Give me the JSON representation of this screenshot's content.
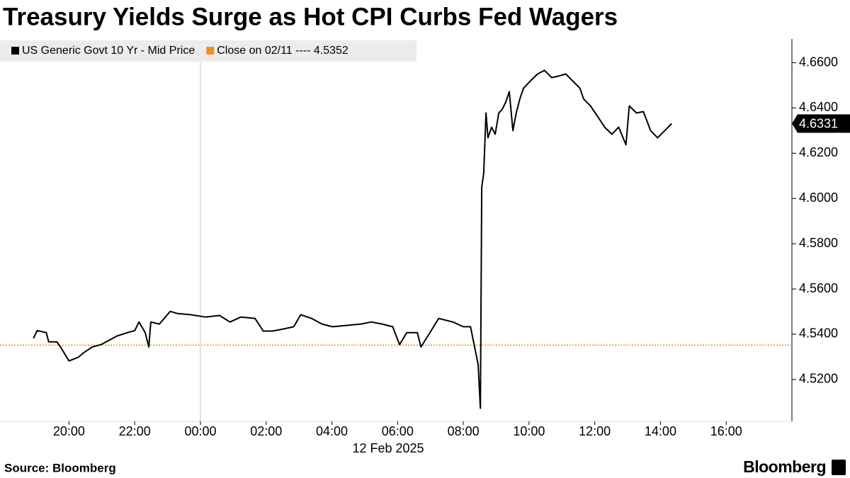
{
  "chart_data": {
    "type": "line",
    "title": "Treasury Yields Surge as Hot CPI Curbs Fed Wagers",
    "xlabel": "12 Feb 2025",
    "source": "Source: Bloomberg",
    "brand": "Bloomberg",
    "xlim": [
      -6.1,
      18
    ],
    "xticks": [
      {
        "value": -4,
        "label": "20:00"
      },
      {
        "value": -2,
        "label": "22:00"
      },
      {
        "value": 0,
        "label": "00:00"
      },
      {
        "value": 2,
        "label": "02:00"
      },
      {
        "value": 4,
        "label": "04:00"
      },
      {
        "value": 6,
        "label": "06:00"
      },
      {
        "value": 8,
        "label": "08:00"
      },
      {
        "value": 10,
        "label": "10:00"
      },
      {
        "value": 12,
        "label": "12:00"
      },
      {
        "value": 14,
        "label": "14:00"
      },
      {
        "value": 16,
        "label": "16:00"
      }
    ],
    "ylim": [
      4.5015,
      4.6705
    ],
    "yticks": [
      {
        "value": 4.52,
        "label": "4.5200"
      },
      {
        "value": 4.54,
        "label": "4.5400"
      },
      {
        "value": 4.56,
        "label": "4.5600"
      },
      {
        "value": 4.58,
        "label": "4.5800"
      },
      {
        "value": 4.6,
        "label": "4.6000"
      },
      {
        "value": 4.62,
        "label": "4.6200"
      },
      {
        "value": 4.64,
        "label": "4.6400"
      },
      {
        "value": 4.66,
        "label": "4.6600"
      }
    ],
    "x": [
      -5.08,
      -4.97,
      -4.69,
      -4.62,
      -4.37,
      -4.26,
      -4.0,
      -3.72,
      -3.55,
      -3.29,
      -3.03,
      -2.75,
      -2.54,
      -2.22,
      -2.0,
      -1.87,
      -1.68,
      -1.57,
      -1.51,
      -1.25,
      -0.92,
      -0.71,
      -0.28,
      0.15,
      0.58,
      0.9,
      1.23,
      1.66,
      1.91,
      2.19,
      2.52,
      2.84,
      3.05,
      3.38,
      3.7,
      4.02,
      4.45,
      4.88,
      5.2,
      5.53,
      5.85,
      6.06,
      6.28,
      6.6,
      6.71,
      6.92,
      7.25,
      7.68,
      8.0,
      8.22,
      8.32,
      8.45,
      8.52,
      8.56,
      8.62,
      8.69,
      8.75,
      8.86,
      8.97,
      9.08,
      9.18,
      9.29,
      9.4,
      9.51,
      9.61,
      9.72,
      9.83,
      10.04,
      10.26,
      10.47,
      10.69,
      10.9,
      11.12,
      11.33,
      11.55,
      11.66,
      11.87,
      12.09,
      12.3,
      12.52,
      12.73,
      12.95,
      13.05,
      13.27,
      13.48,
      13.7,
      13.91,
      14.13,
      14.34
    ],
    "series": [
      {
        "name": "US Generic Govt 10 Yr - Mid Price",
        "color": "#000000",
        "values": [
          4.5382,
          4.5416,
          4.5407,
          4.5366,
          4.5366,
          4.5344,
          4.5282,
          4.5298,
          4.5319,
          4.5344,
          4.5354,
          4.5376,
          4.5392,
          4.5407,
          4.5416,
          4.5454,
          4.5407,
          4.5344,
          4.5454,
          4.5445,
          4.5501,
          4.5492,
          4.5486,
          4.5476,
          4.5483,
          4.5454,
          4.5476,
          4.547,
          4.5414,
          4.5414,
          4.5423,
          4.5433,
          4.5486,
          4.547,
          4.5445,
          4.5433,
          4.5439,
          4.5445,
          4.5454,
          4.5445,
          4.5433,
          4.5354,
          4.5407,
          4.5407,
          4.5344,
          4.5392,
          4.547,
          4.5454,
          4.5433,
          4.5433,
          4.5361,
          4.5267,
          4.5073,
          4.6049,
          4.6112,
          4.6378,
          4.6268,
          4.6315,
          4.6284,
          4.6378,
          4.6393,
          4.6425,
          4.6472,
          4.63,
          4.6378,
          4.644,
          4.6487,
          4.6519,
          4.655,
          4.6566,
          4.6534,
          4.6541,
          4.655,
          4.6519,
          4.6487,
          4.644,
          4.6409,
          4.6362,
          4.6315,
          4.6284,
          4.6315,
          4.6237,
          4.6409,
          4.6378,
          4.6384,
          4.63,
          4.6268,
          4.63,
          4.6331
        ]
      }
    ],
    "reference_line": {
      "name": "Close on 02/11 ---- 4.5352",
      "value": 4.5352,
      "color": "#f0901e"
    },
    "annotations": [
      {
        "value": 4.6331,
        "label": "4.6331"
      }
    ]
  }
}
